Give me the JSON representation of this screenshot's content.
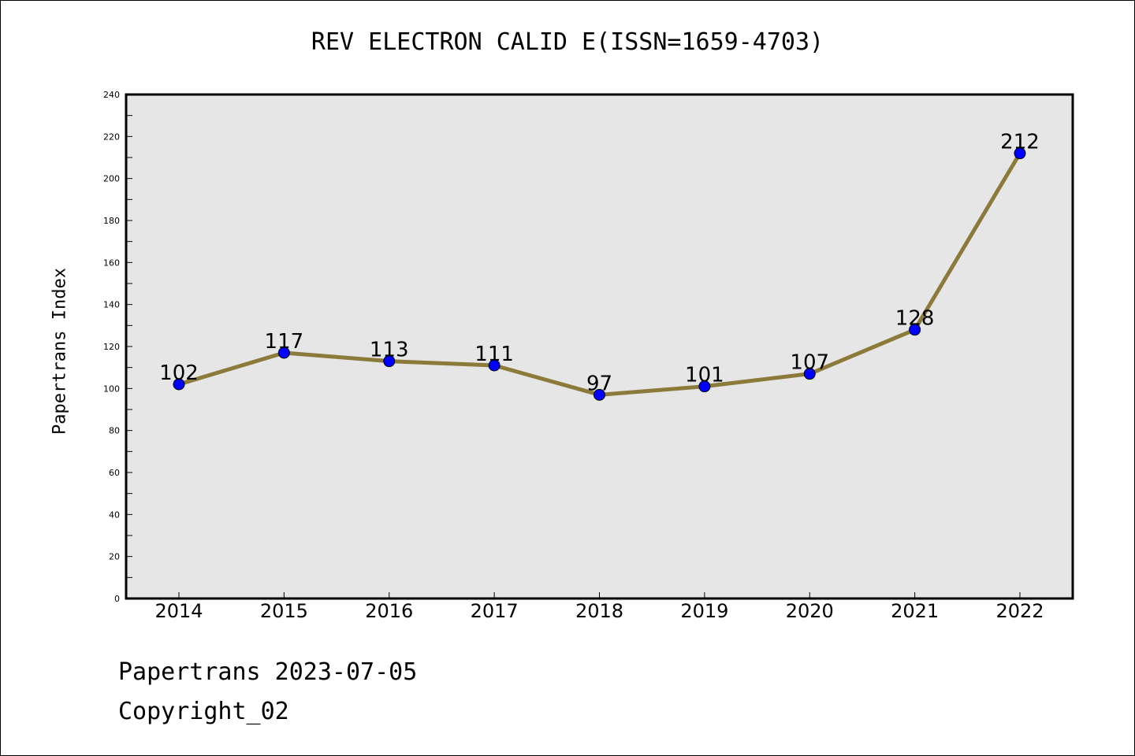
{
  "chart_data": {
    "type": "line",
    "title": "REV ELECTRON CALID E(ISSN=1659-4703)",
    "ylabel": "Papertrans Index",
    "xlabel": "",
    "ylim": [
      0,
      240
    ],
    "ytick_step": 20,
    "categories": [
      "2014",
      "2015",
      "2016",
      "2017",
      "2018",
      "2019",
      "2020",
      "2021",
      "2022"
    ],
    "series": [
      {
        "values": [
          102,
          117,
          113,
          111,
          97,
          101,
          107,
          128,
          212
        ]
      }
    ],
    "grid": false,
    "line_color": "#8b7a3a",
    "marker_color": "#0000ff",
    "plot_background": "#e6e6e6"
  },
  "footer": {
    "line1": "Papertrans 2023-07-05",
    "line2": "Copyright_02"
  }
}
